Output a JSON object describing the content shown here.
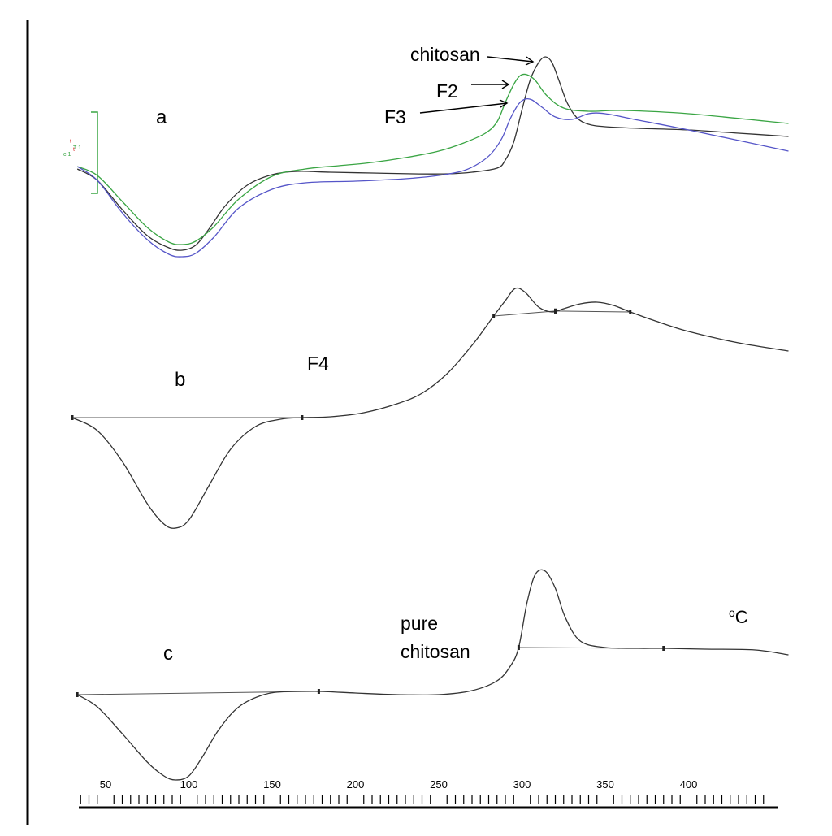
{
  "chart_data": {
    "type": "line",
    "x_unit": "°C",
    "x_ticks": [
      50,
      100,
      150,
      200,
      250,
      300,
      350,
      400
    ],
    "xlim": [
      30,
      460
    ],
    "grid": false,
    "panels": [
      {
        "label": "a",
        "series": [
          {
            "name": "chitosan",
            "color": "#333333",
            "x": [
              33,
              45,
              60,
              75,
              88,
              96,
              104,
              112,
              122,
              135,
              150,
              165,
              185,
              210,
              235,
              255,
              270,
              285,
              290,
              295,
              300,
              305,
              310,
              314,
              318,
              322,
              327,
              333,
              340,
              350,
              370,
              400,
              430,
              460
            ],
            "y": [
              208,
              222,
              258,
              290,
              305,
              308,
              302,
              282,
              253,
              228,
              215,
              211,
              212,
              213,
              214,
              214,
              212,
              207,
              197,
              175,
              135,
              98,
              77,
              70,
              77,
              98,
              126,
              145,
              153,
              156,
              158,
              160,
              164,
              168
            ]
          },
          {
            "name": "F2",
            "color": "#3aa544",
            "x": [
              33,
              45,
              60,
              75,
              88,
              96,
              104,
              115,
              130,
              150,
              170,
              190,
              210,
              230,
              250,
              265,
              278,
              285,
              290,
              295,
              299,
              303,
              308,
              315,
              325,
              340,
              360,
              400,
              460
            ],
            "y": [
              205,
              216,
              248,
              280,
              298,
              301,
              297,
              279,
              245,
              217,
              208,
              204,
              200,
              194,
              186,
              176,
              164,
              150,
              126,
              104,
              93,
              92,
              99,
              118,
              133,
              137,
              136,
              140,
              152
            ]
          },
          {
            "name": "F3",
            "color": "#5555c8",
            "x": [
              33,
              45,
              60,
              75,
              88,
              96,
              104,
              115,
              130,
              150,
              170,
              200,
              230,
              250,
              265,
              275,
              282,
              288,
              293,
              298,
              302,
              306,
              312,
              320,
              330,
              340,
              350,
              370,
              400,
              460
            ],
            "y": [
              205,
              222,
              262,
              295,
              313,
              316,
              312,
              292,
              256,
              233,
              225,
              223,
              220,
              216,
              210,
              200,
              188,
              170,
              146,
              128,
              122,
              123,
              132,
              144,
              147,
              140,
              140,
              148,
              160,
              186
            ]
          }
        ]
      },
      {
        "label": "b",
        "series": [
          {
            "name": "F4",
            "color": "#333333",
            "x": [
              30,
              45,
              60,
              75,
              85,
              92,
              100,
              112,
              125,
              140,
              155,
              168,
              185,
              205,
              225,
              240,
              255,
              270,
              283,
              290,
              296,
              302,
              310,
              318,
              325,
              335,
              345,
              355,
              365,
              380,
              400,
              430,
              460
            ],
            "y": [
              514,
              530,
              568,
              620,
              645,
              650,
              640,
              598,
              553,
              525,
              516,
              514,
              513,
              508,
              497,
              484,
              460,
              425,
              389,
              370,
              355,
              360,
              378,
              384,
              380,
              374,
              372,
              376,
              384,
              395,
              408,
              422,
              432
            ]
          }
        ],
        "baselines": [
          [
            30,
            168
          ],
          [
            283,
            320
          ],
          [
            320,
            365
          ]
        ]
      },
      {
        "label": "c",
        "series": [
          {
            "name": "pure chitosan",
            "color": "#333333",
            "x": [
              33,
              45,
              60,
              75,
              85,
              92,
              100,
              108,
              118,
              130,
              145,
              160,
              178,
              200,
              225,
              250,
              270,
              285,
              293,
              298,
              303,
              308,
              314,
              320,
              326,
              335,
              350,
              370,
              385,
              410,
              440,
              460
            ],
            "y": [
              855,
              870,
              903,
              938,
              955,
              960,
              955,
              932,
              898,
              870,
              855,
              851,
              851,
              853,
              855,
              855,
              850,
              838,
              820,
              797,
              742,
              707,
              703,
              724,
              760,
              789,
              797,
              798,
              798,
              799,
              800,
              806
            ]
          }
        ],
        "baselines": [
          [
            33,
            178
          ],
          [
            298,
            385
          ]
        ]
      }
    ],
    "annotations": {
      "chitosan": "chitosan",
      "F2": "F2",
      "F3": "F3",
      "F4": "F4",
      "pure_line1": "pure",
      "pure_line2": "chitosan"
    },
    "unit_label": "oC",
    "tiny_markers": [
      "t",
      "t",
      "T 1",
      "c 1"
    ]
  }
}
